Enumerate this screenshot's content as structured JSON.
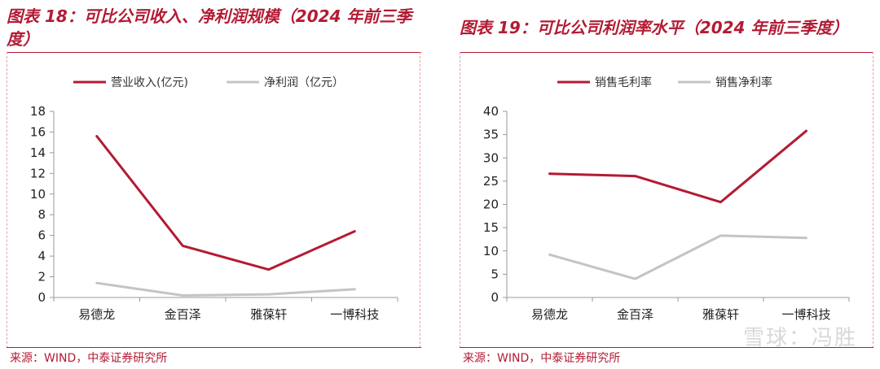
{
  "left": {
    "title": "图表 18：可比公司收入、净利润规模（2024 年前三季度）",
    "source": "来源：WIND，中泰证券研究所"
  },
  "right": {
    "title": "图表 19：可比公司利润率水平（2024 年前三季度）",
    "source": "来源：WIND，中泰证券研究所"
  },
  "watermark": "雪球：冯胜",
  "colors": {
    "series1": "#b31b34",
    "series2": "#c4c4c4",
    "accent": "#b31b34"
  },
  "chart_data": [
    {
      "type": "line",
      "categories": [
        "易德龙",
        "金百泽",
        "雅葆轩",
        "一博科技"
      ],
      "series": [
        {
          "name": "营业收入(亿元)",
          "values": [
            15.6,
            5.0,
            2.7,
            6.4
          ]
        },
        {
          "name": "净利润（亿元）",
          "values": [
            1.4,
            0.2,
            0.3,
            0.8
          ]
        }
      ],
      "ylim": [
        0,
        18
      ],
      "yticks": [
        0,
        2,
        4,
        6,
        8,
        10,
        12,
        14,
        16,
        18
      ],
      "legend": "top"
    },
    {
      "type": "line",
      "categories": [
        "易德龙",
        "金百泽",
        "雅葆轩",
        "一博科技"
      ],
      "series": [
        {
          "name": "销售毛利率",
          "values": [
            26.6,
            26.1,
            20.5,
            35.8
          ]
        },
        {
          "name": "销售净利率",
          "values": [
            9.2,
            4.0,
            13.3,
            12.8
          ]
        }
      ],
      "ylim": [
        0,
        40
      ],
      "yticks": [
        0,
        5,
        10,
        15,
        20,
        25,
        30,
        35,
        40
      ],
      "legend": "top"
    }
  ]
}
